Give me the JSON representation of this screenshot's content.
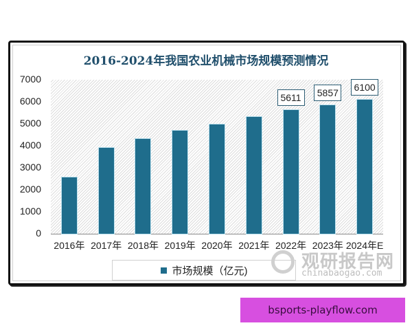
{
  "chart_data": {
    "type": "bar",
    "title": "2016-2024年我国农业机械市场规模预测情况",
    "categories": [
      "2016年",
      "2017年",
      "2018年",
      "2019年",
      "2020年",
      "2021年",
      "2022年",
      "2023年",
      "2024年E"
    ],
    "series": [
      {
        "name": "市场规模（亿元)",
        "values": [
          2560,
          3900,
          4300,
          4690,
          4970,
          5310,
          5611,
          5857,
          6100
        ],
        "color": "#1f6d8c"
      }
    ],
    "data_labels": {
      "6": "5611",
      "7": "5857",
      "8": "6100"
    },
    "xlabel": "",
    "ylabel": "",
    "ylim": [
      0,
      7000
    ],
    "yticks": [
      "0",
      "1000",
      "2000",
      "3000",
      "4000",
      "5000",
      "6000",
      "7000"
    ],
    "grid": false,
    "legend_position": "bottom"
  },
  "watermark": {
    "cn": "观研报告网",
    "en": "chinabaogao.com"
  },
  "footer_badge": {
    "text": "bsports-playflow.com",
    "color": "#d74fe0"
  }
}
